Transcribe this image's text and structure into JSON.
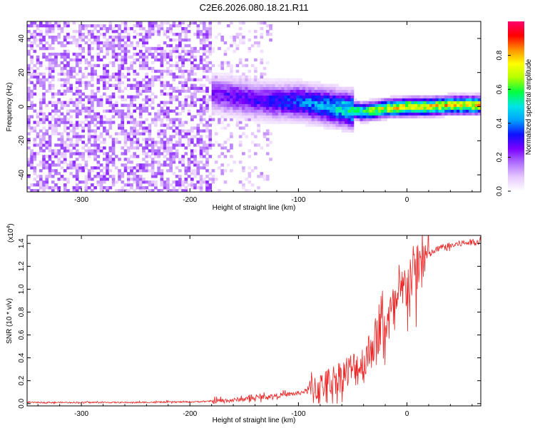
{
  "title": "C2E6.2026.080.18.21.R11",
  "colormap_stops": [
    "#ffffff",
    "#e6c8ff",
    "#b070ff",
    "#7a00ff",
    "#1010ff",
    "#00a0ff",
    "#00e5e5",
    "#00ff40",
    "#b0ff00",
    "#ffff00",
    "#ff9000",
    "#ff0000",
    "#ff0070"
  ],
  "colorbar": {
    "label": "Normalized spectral amplitude",
    "ticks": [
      0.0,
      0.2,
      0.4,
      0.6,
      0.8
    ],
    "tick_labels": [
      "0.0",
      "0.2",
      "0.4",
      "0.6",
      "0.8"
    ],
    "range": [
      0,
      1
    ]
  },
  "chart_data": [
    {
      "type": "heatmap",
      "title": "",
      "xlabel": "Height of straight line (km)",
      "ylabel": "Frequency (Hz)",
      "xlim": [
        -350,
        68
      ],
      "ylim": [
        -50,
        50
      ],
      "xticks": [
        -300,
        -200,
        -100,
        0
      ],
      "xtick_labels": [
        "-300",
        "-200",
        "-100",
        "0"
      ],
      "yticks": [
        -40,
        -20,
        0,
        20,
        40
      ],
      "ytick_labels": [
        "-40",
        "-20",
        "0",
        "20",
        "40"
      ],
      "ridge": {
        "x": [
          -180,
          -160,
          -140,
          -120,
          -100,
          -80,
          -60,
          -40,
          -20,
          0,
          20,
          40,
          60,
          68
        ],
        "center_hz": [
          8,
          6,
          4,
          3,
          3,
          1,
          -1,
          -3,
          -1,
          0,
          0,
          1,
          1,
          1
        ],
        "peak_amplitude": [
          0.25,
          0.3,
          0.3,
          0.35,
          0.4,
          0.45,
          0.55,
          0.65,
          0.75,
          0.8,
          0.8,
          0.8,
          0.82,
          0.82
        ]
      },
      "noise_region": {
        "x_from": -350,
        "x_to": -125,
        "amplitude": "0.1-0.25"
      }
    },
    {
      "type": "line",
      "title": "",
      "xlabel": "Height of straight line (km)",
      "ylabel": "SNR (10 * v/v)",
      "y_multiplier_label": "(x10",
      "y_multiplier_exp": "4",
      "multiplier_close": ")",
      "xlim": [
        -350,
        68
      ],
      "ylim": [
        -0.02,
        1.47
      ],
      "xticks": [
        -300,
        -200,
        -100,
        0
      ],
      "xtick_labels": [
        "-300",
        "-200",
        "-100",
        "0"
      ],
      "yticks": [
        0.0,
        0.2,
        0.4,
        0.6,
        0.8,
        1.0,
        1.2,
        1.4
      ],
      "ytick_labels": [
        "0.0",
        "0.2",
        "0.4",
        "0.6",
        "0.8",
        "1.0",
        "1.2",
        "1.4"
      ],
      "series": [
        {
          "name": "SNR",
          "color": "#ee2222",
          "x": [
            -350,
            -300,
            -250,
            -200,
            -180,
            -160,
            -140,
            -120,
            -100,
            -80,
            -70,
            -60,
            -50,
            -40,
            -30,
            -20,
            -10,
            0,
            10,
            20,
            30,
            40,
            50,
            60,
            68
          ],
          "y": [
            0.01,
            0.01,
            0.01,
            0.015,
            0.02,
            0.03,
            0.05,
            0.07,
            0.09,
            0.15,
            0.2,
            0.25,
            0.3,
            0.35,
            0.55,
            0.7,
            0.85,
            1.05,
            1.2,
            1.3,
            1.36,
            1.38,
            1.4,
            1.41,
            1.42
          ]
        }
      ]
    }
  ]
}
